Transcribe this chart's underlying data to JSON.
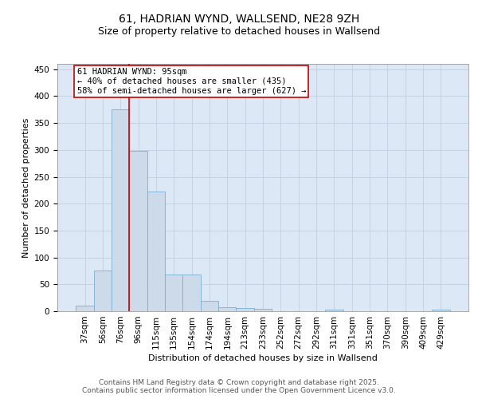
{
  "title1": "61, HADRIAN WYND, WALLSEND, NE28 9ZH",
  "title2": "Size of property relative to detached houses in Wallsend",
  "xlabel": "Distribution of detached houses by size in Wallsend",
  "ylabel": "Number of detached properties",
  "categories": [
    "37sqm",
    "56sqm",
    "76sqm",
    "96sqm",
    "115sqm",
    "135sqm",
    "154sqm",
    "174sqm",
    "194sqm",
    "213sqm",
    "233sqm",
    "252sqm",
    "272sqm",
    "292sqm",
    "311sqm",
    "331sqm",
    "351sqm",
    "370sqm",
    "390sqm",
    "409sqm",
    "429sqm"
  ],
  "values": [
    11,
    75,
    375,
    298,
    222,
    68,
    68,
    19,
    7,
    6,
    5,
    0,
    0,
    0,
    3,
    0,
    0,
    0,
    0,
    0,
    3
  ],
  "bar_color": "#ccdaea",
  "bar_edge_color": "#7aafd4",
  "vline_x_index": 2.5,
  "vline_color": "#cc0000",
  "annotation_text": "61 HADRIAN WYND: 95sqm\n← 40% of detached houses are smaller (435)\n58% of semi-detached houses are larger (627) →",
  "annotation_box_facecolor": "#ffffff",
  "annotation_box_edgecolor": "#cc0000",
  "ylim": [
    0,
    460
  ],
  "yticks": [
    0,
    50,
    100,
    150,
    200,
    250,
    300,
    350,
    400,
    450
  ],
  "plot_bg_color": "#dce8f5",
  "grid_color": "#c0cfe0",
  "footer1": "Contains HM Land Registry data © Crown copyright and database right 2025.",
  "footer2": "Contains public sector information licensed under the Open Government Licence v3.0.",
  "title1_fontsize": 10,
  "title2_fontsize": 9,
  "axis_label_fontsize": 8,
  "tick_fontsize": 7.5,
  "annotation_fontsize": 7.5,
  "footer_fontsize": 6.5
}
